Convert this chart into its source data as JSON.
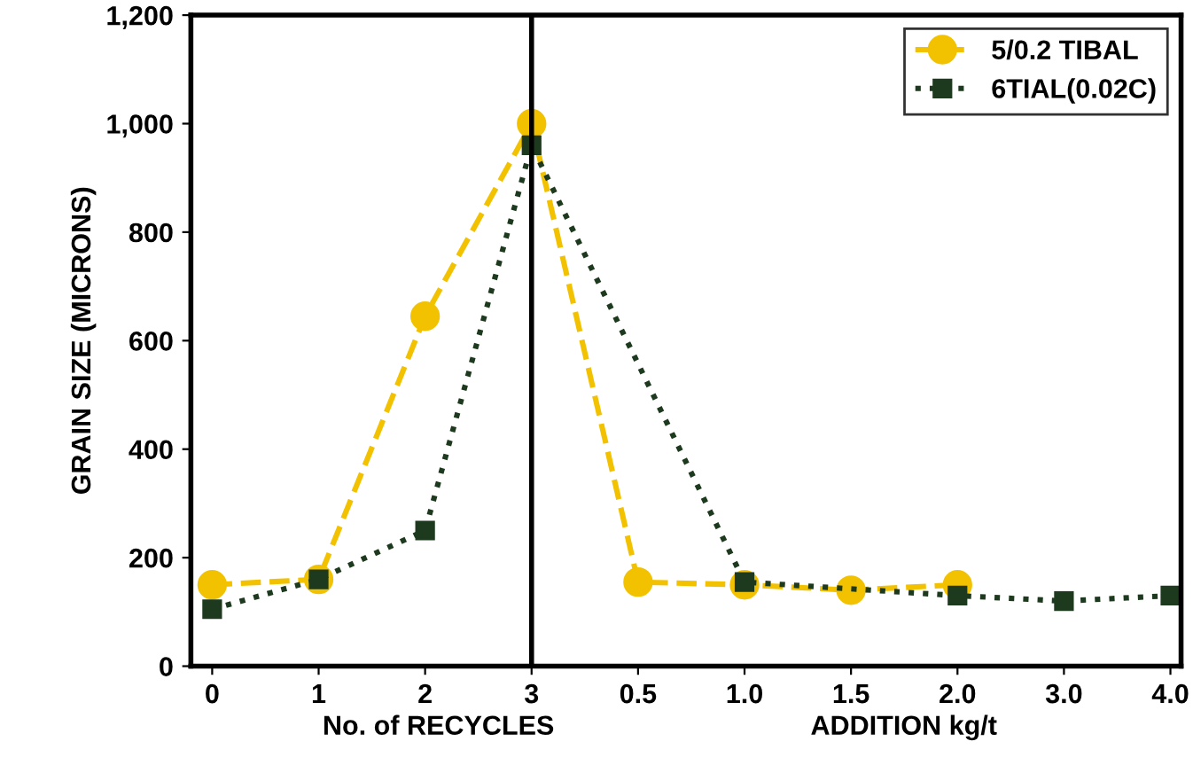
{
  "chart_data": {
    "type": "line",
    "ylabel": "GRAIN SIZE (MICRONS)",
    "xlabel": "No. of RECYCLES",
    "annotations": [
      "ADDITION kg/t"
    ],
    "categories": [
      "0",
      "1",
      "2",
      "3",
      "0.5",
      "1.0",
      "1.5",
      "2.0",
      "3.0",
      "4.0"
    ],
    "series": [
      {
        "name": "5/0.2 TIBAL",
        "color": "#f2c200",
        "marker": "circle",
        "line_style": "dashed",
        "values": [
          150,
          160,
          645,
          1000,
          155,
          150,
          140,
          150,
          null,
          null
        ]
      },
      {
        "name": "6TIAL(0.02C)",
        "color": "#1e3a1e",
        "marker": "square",
        "line_style": "dotted",
        "values": [
          105,
          160,
          250,
          960,
          null,
          155,
          null,
          130,
          120,
          130
        ]
      }
    ],
    "ylim": [
      0,
      1200
    ],
    "yticks": [
      0,
      200,
      400,
      600,
      800,
      {
        "value": 1000,
        "label": "1,000"
      },
      {
        "value": 1200,
        "label": "1,200"
      }
    ],
    "ref_lines": [
      {
        "axis": "x",
        "value": "3",
        "color": "#000000"
      }
    ],
    "grid": false,
    "legend": "top right"
  }
}
